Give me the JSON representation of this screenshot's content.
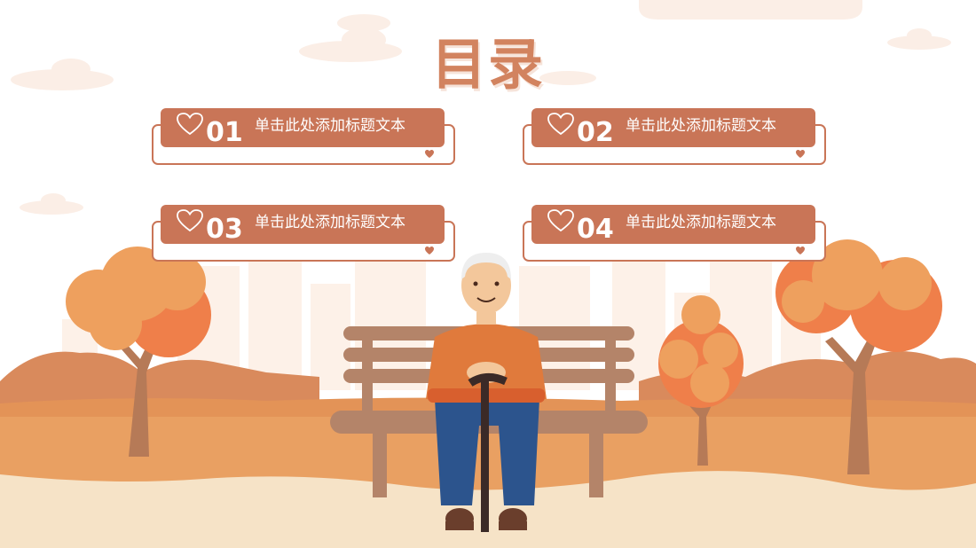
{
  "slide": {
    "title": "目录",
    "items": [
      {
        "number": "01",
        "text": "单击此处添加标题文本"
      },
      {
        "number": "02",
        "text": "单击此处添加标题文本"
      },
      {
        "number": "03",
        "text": "单击此处添加标题文本"
      },
      {
        "number": "04",
        "text": "单击此处添加标题文本"
      }
    ]
  },
  "colors": {
    "accent": "#c97557",
    "title": "#d2835f",
    "ground": "#f6e3c7",
    "grass": "#e9a062"
  },
  "icons": [
    "heart-outline-icon",
    "heart-small-icon"
  ]
}
